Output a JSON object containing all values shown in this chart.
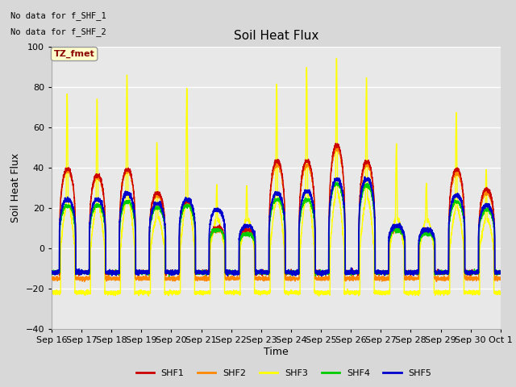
{
  "title": "Soil Heat Flux",
  "ylabel": "Soil Heat Flux",
  "xlabel": "Time",
  "ylim": [
    -40,
    100
  ],
  "no_data_text": [
    "No data for f_SHF_1",
    "No data for f_SHF_2"
  ],
  "tz_label": "TZ_fmet",
  "colors": {
    "SHF1": "#cc0000",
    "SHF2": "#ff8800",
    "SHF3": "#ffff00",
    "SHF4": "#00cc00",
    "SHF5": "#0000cc"
  },
  "legend_labels": [
    "SHF1",
    "SHF2",
    "SHF3",
    "SHF4",
    "SHF5"
  ],
  "x_tick_labels": [
    "Sep 16",
    "Sep 17",
    "Sep 18",
    "Sep 19",
    "Sep 20",
    "Sep 21",
    "Sep 22",
    "Sep 23",
    "Sep 24",
    "Sep 25",
    "Sep 26",
    "Sep 27",
    "Sep 28",
    "Sep 29",
    "Sep 30",
    "Oct 1"
  ],
  "background_color": "#d8d8d8",
  "plot_bg_color": "#e8e8e8",
  "grid_color": "#ffffff",
  "shf3_peaks": [
    77,
    75,
    87,
    53,
    80,
    32,
    32,
    82,
    90,
    95,
    85,
    52,
    33,
    68,
    40
  ],
  "shf1_peaks": [
    40,
    37,
    40,
    28,
    24,
    11,
    10,
    44,
    44,
    52,
    44,
    11,
    10,
    40,
    30
  ],
  "shf2_peaks": [
    39,
    36,
    39,
    27,
    23,
    10,
    9,
    42,
    42,
    50,
    42,
    10,
    9,
    38,
    28
  ],
  "shf4_peaks": [
    22,
    22,
    24,
    21,
    22,
    10,
    8,
    25,
    25,
    33,
    32,
    10,
    8,
    24,
    20
  ],
  "shf5_peaks": [
    25,
    25,
    28,
    23,
    25,
    20,
    12,
    28,
    29,
    35,
    35,
    12,
    10,
    27,
    22
  ]
}
